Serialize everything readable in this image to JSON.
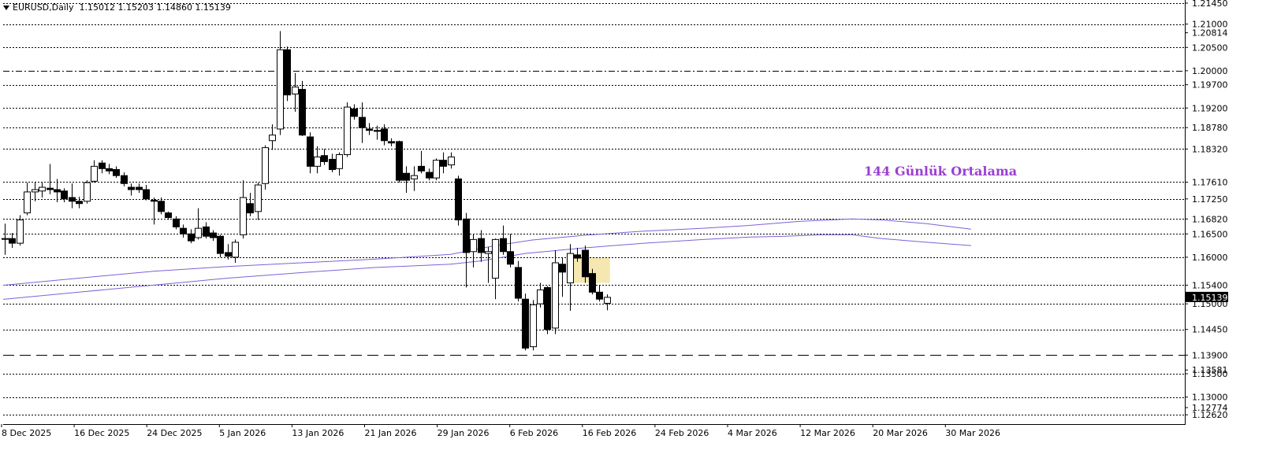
{
  "header": {
    "symbol": "EURUSD,Daily",
    "ohlc": "1.15012 1.15203 1.14860 1.15139"
  },
  "annotation": "144 Günlük Ortalama",
  "chart_data": {
    "type": "candlestick",
    "symbol": "EURUSD",
    "timeframe": "Daily",
    "ylim": [
      1.1242,
      1.215
    ],
    "price_axis_labels": [
      {
        "value": 1.2145,
        "label": "1.21450"
      },
      {
        "value": 1.21,
        "label": "1.21000"
      },
      {
        "value": 1.20814,
        "label": "1.20814"
      },
      {
        "value": 1.205,
        "label": "1.20500"
      },
      {
        "value": 1.2,
        "label": "1.20000"
      },
      {
        "value": 1.197,
        "label": "1.19700"
      },
      {
        "value": 1.192,
        "label": "1.19200"
      },
      {
        "value": 1.1878,
        "label": "1.18780"
      },
      {
        "value": 1.1832,
        "label": "1.18320"
      },
      {
        "value": 1.1761,
        "label": "1.17610"
      },
      {
        "value": 1.1725,
        "label": "1.17250"
      },
      {
        "value": 1.1682,
        "label": "1.16820"
      },
      {
        "value": 1.165,
        "label": "1.16500"
      },
      {
        "value": 1.16,
        "label": "1.16000"
      },
      {
        "value": 1.154,
        "label": "1.15400"
      },
      {
        "value": 1.15139,
        "label": "1.15139",
        "current": true
      },
      {
        "value": 1.15,
        "label": "1.15000"
      },
      {
        "value": 1.1445,
        "label": "1.14450"
      },
      {
        "value": 1.139,
        "label": "1.13900"
      },
      {
        "value": 1.13581,
        "label": "1.13581"
      },
      {
        "value": 1.135,
        "label": "1.13500"
      },
      {
        "value": 1.13,
        "label": "1.13000"
      },
      {
        "value": 1.12774,
        "label": "1.12774"
      },
      {
        "value": 1.1262,
        "label": "1.12620"
      }
    ],
    "horizontal_levels": [
      {
        "value": 1.2145,
        "style": "dotted"
      },
      {
        "value": 1.21,
        "style": "dotted"
      },
      {
        "value": 1.205,
        "style": "dotted"
      },
      {
        "value": 1.2,
        "style": "dashdot"
      },
      {
        "value": 1.197,
        "style": "dotted"
      },
      {
        "value": 1.192,
        "style": "dotted"
      },
      {
        "value": 1.1878,
        "style": "dotted"
      },
      {
        "value": 1.1832,
        "style": "dotted"
      },
      {
        "value": 1.1761,
        "style": "dotted"
      },
      {
        "value": 1.1725,
        "style": "dotted"
      },
      {
        "value": 1.1682,
        "style": "dotted"
      },
      {
        "value": 1.165,
        "style": "dotted"
      },
      {
        "value": 1.16,
        "style": "dotted"
      },
      {
        "value": 1.154,
        "style": "dotted"
      },
      {
        "value": 1.15,
        "style": "dotted"
      },
      {
        "value": 1.1445,
        "style": "dotted"
      },
      {
        "value": 1.139,
        "style": "dashed"
      },
      {
        "value": 1.135,
        "style": "dotted"
      },
      {
        "value": 1.13,
        "style": "dotted"
      },
      {
        "value": 1.1262,
        "style": "dotted"
      }
    ],
    "time_labels": [
      "8 Dec 2025",
      "16 Dec 2025",
      "24 Dec 2025",
      "5 Jan 2026",
      "13 Jan 2026",
      "21 Jan 2026",
      "29 Jan 2026",
      "6 Feb 2026",
      "16 Feb 2026",
      "24 Feb 2026",
      "4 Mar 2026",
      "12 Mar 2026",
      "20 Mar 2026",
      "30 Mar 2026"
    ],
    "candles": [
      {
        "date": "2025-12-05",
        "o": 1.164,
        "h": 1.1672,
        "l": 1.1605,
        "c": 1.164
      },
      {
        "date": "2025-12-08",
        "o": 1.164,
        "h": 1.1652,
        "l": 1.162,
        "c": 1.163
      },
      {
        "date": "2025-12-09",
        "o": 1.163,
        "h": 1.169,
        "l": 1.1625,
        "c": 1.168
      },
      {
        "date": "2025-12-10",
        "o": 1.1695,
        "h": 1.176,
        "l": 1.169,
        "c": 1.174
      },
      {
        "date": "2025-12-11",
        "o": 1.174,
        "h": 1.1762,
        "l": 1.172,
        "c": 1.1745
      },
      {
        "date": "2025-12-12",
        "o": 1.1742,
        "h": 1.176,
        "l": 1.1728,
        "c": 1.175
      },
      {
        "date": "2025-12-15",
        "o": 1.1748,
        "h": 1.18,
        "l": 1.1735,
        "c": 1.1745
      },
      {
        "date": "2025-12-16",
        "o": 1.1745,
        "h": 1.1768,
        "l": 1.1718,
        "c": 1.174
      },
      {
        "date": "2025-12-17",
        "o": 1.1742,
        "h": 1.1748,
        "l": 1.1718,
        "c": 1.1725
      },
      {
        "date": "2025-12-18",
        "o": 1.1728,
        "h": 1.1758,
        "l": 1.1705,
        "c": 1.172
      },
      {
        "date": "2025-12-19",
        "o": 1.172,
        "h": 1.173,
        "l": 1.1705,
        "c": 1.1715
      },
      {
        "date": "2025-12-22",
        "o": 1.172,
        "h": 1.1765,
        "l": 1.1715,
        "c": 1.176
      },
      {
        "date": "2025-12-23",
        "o": 1.1763,
        "h": 1.1808,
        "l": 1.176,
        "c": 1.1795
      },
      {
        "date": "2025-12-24",
        "o": 1.1802,
        "h": 1.1808,
        "l": 1.178,
        "c": 1.179
      },
      {
        "date": "2025-12-25",
        "o": 1.179,
        "h": 1.18,
        "l": 1.1778,
        "c": 1.1785
      },
      {
        "date": "2025-12-26",
        "o": 1.1788,
        "h": 1.1795,
        "l": 1.177,
        "c": 1.1775
      },
      {
        "date": "2025-12-29",
        "o": 1.1775,
        "h": 1.1782,
        "l": 1.1752,
        "c": 1.1758
      },
      {
        "date": "2025-12-30",
        "o": 1.175,
        "h": 1.1758,
        "l": 1.1732,
        "c": 1.1745
      },
      {
        "date": "2025-12-31",
        "o": 1.175,
        "h": 1.1758,
        "l": 1.1738,
        "c": 1.1745
      },
      {
        "date": "2026-01-01",
        "o": 1.1745,
        "h": 1.1755,
        "l": 1.1722,
        "c": 1.1725
      },
      {
        "date": "2026-01-02",
        "o": 1.1722,
        "h": 1.1728,
        "l": 1.167,
        "c": 1.172
      },
      {
        "date": "2026-01-05",
        "o": 1.172,
        "h": 1.1728,
        "l": 1.1692,
        "c": 1.1698
      },
      {
        "date": "2026-01-06",
        "o": 1.1695,
        "h": 1.1698,
        "l": 1.168,
        "c": 1.1685
      },
      {
        "date": "2026-01-07",
        "o": 1.1682,
        "h": 1.1688,
        "l": 1.166,
        "c": 1.1665
      },
      {
        "date": "2026-01-08",
        "o": 1.1662,
        "h": 1.167,
        "l": 1.1642,
        "c": 1.165
      },
      {
        "date": "2026-01-09",
        "o": 1.165,
        "h": 1.166,
        "l": 1.163,
        "c": 1.1635
      },
      {
        "date": "2026-01-12",
        "o": 1.1642,
        "h": 1.1705,
        "l": 1.1638,
        "c": 1.1662
      },
      {
        "date": "2026-01-13",
        "o": 1.1665,
        "h": 1.1675,
        "l": 1.164,
        "c": 1.1645
      },
      {
        "date": "2026-01-14",
        "o": 1.1652,
        "h": 1.1658,
        "l": 1.1635,
        "c": 1.1642
      },
      {
        "date": "2026-01-15",
        "o": 1.1645,
        "h": 1.1648,
        "l": 1.16,
        "c": 1.1608
      },
      {
        "date": "2026-01-16",
        "o": 1.161,
        "h": 1.1628,
        "l": 1.1595,
        "c": 1.1602
      },
      {
        "date": "2026-01-19",
        "o": 1.16,
        "h": 1.1638,
        "l": 1.1588,
        "c": 1.1632
      },
      {
        "date": "2026-01-20",
        "o": 1.1648,
        "h": 1.1765,
        "l": 1.164,
        "c": 1.1728
      },
      {
        "date": "2026-01-21",
        "o": 1.1715,
        "h": 1.1738,
        "l": 1.1688,
        "c": 1.1695
      },
      {
        "date": "2026-01-22",
        "o": 1.1698,
        "h": 1.176,
        "l": 1.168,
        "c": 1.1755
      },
      {
        "date": "2026-01-23",
        "o": 1.1758,
        "h": 1.184,
        "l": 1.1745,
        "c": 1.1835
      },
      {
        "date": "2026-01-26",
        "o": 1.185,
        "h": 1.1885,
        "l": 1.183,
        "c": 1.1862
      },
      {
        "date": "2026-01-27",
        "o": 1.1875,
        "h": 1.2085,
        "l": 1.1862,
        "c": 1.2045
      },
      {
        "date": "2026-01-28",
        "o": 1.2045,
        "h": 1.2052,
        "l": 1.1935,
        "c": 1.1948
      },
      {
        "date": "2026-01-29",
        "o": 1.195,
        "h": 1.1995,
        "l": 1.1912,
        "c": 1.1965
      },
      {
        "date": "2026-01-30",
        "o": 1.196,
        "h": 1.1978,
        "l": 1.186,
        "c": 1.1862
      },
      {
        "date": "2026-02-02",
        "o": 1.1858,
        "h": 1.1868,
        "l": 1.178,
        "c": 1.1795
      },
      {
        "date": "2026-02-03",
        "o": 1.1795,
        "h": 1.1838,
        "l": 1.178,
        "c": 1.1815
      },
      {
        "date": "2026-02-04",
        "o": 1.1818,
        "h": 1.1832,
        "l": 1.1798,
        "c": 1.1805
      },
      {
        "date": "2026-02-05",
        "o": 1.181,
        "h": 1.1822,
        "l": 1.1782,
        "c": 1.1788
      },
      {
        "date": "2026-02-06",
        "o": 1.179,
        "h": 1.1825,
        "l": 1.1775,
        "c": 1.182
      },
      {
        "date": "2026-02-09",
        "o": 1.182,
        "h": 1.1932,
        "l": 1.1815,
        "c": 1.1922
      },
      {
        "date": "2026-02-10",
        "o": 1.1918,
        "h": 1.1928,
        "l": 1.1895,
        "c": 1.1902
      },
      {
        "date": "2026-02-11",
        "o": 1.19,
        "h": 1.1932,
        "l": 1.1845,
        "c": 1.1878
      },
      {
        "date": "2026-02-12",
        "o": 1.1875,
        "h": 1.1888,
        "l": 1.1862,
        "c": 1.1872
      },
      {
        "date": "2026-02-13",
        "o": 1.1872,
        "h": 1.1882,
        "l": 1.1852,
        "c": 1.187
      },
      {
        "date": "2026-02-16",
        "o": 1.1875,
        "h": 1.1885,
        "l": 1.184,
        "c": 1.185
      },
      {
        "date": "2026-02-17",
        "o": 1.1848,
        "h": 1.1855,
        "l": 1.1838,
        "c": 1.1845
      },
      {
        "date": "2026-02-18",
        "o": 1.1848,
        "h": 1.185,
        "l": 1.176,
        "c": 1.1765
      },
      {
        "date": "2026-02-19",
        "o": 1.178,
        "h": 1.1795,
        "l": 1.1738,
        "c": 1.1765
      },
      {
        "date": "2026-02-20",
        "o": 1.1768,
        "h": 1.1795,
        "l": 1.1742,
        "c": 1.1775
      },
      {
        "date": "2026-02-23",
        "o": 1.1795,
        "h": 1.1828,
        "l": 1.178,
        "c": 1.1785
      },
      {
        "date": "2026-02-24",
        "o": 1.1782,
        "h": 1.179,
        "l": 1.1765,
        "c": 1.177
      },
      {
        "date": "2026-02-25",
        "o": 1.177,
        "h": 1.1812,
        "l": 1.1765,
        "c": 1.1808
      },
      {
        "date": "2026-02-26",
        "o": 1.1808,
        "h": 1.1825,
        "l": 1.178,
        "c": 1.1795
      },
      {
        "date": "2026-02-27",
        "o": 1.1798,
        "h": 1.1825,
        "l": 1.179,
        "c": 1.1815
      },
      {
        "date": "2026-03-02",
        "o": 1.1768,
        "h": 1.1775,
        "l": 1.1668,
        "c": 1.168
      },
      {
        "date": "2026-03-03",
        "o": 1.1682,
        "h": 1.1695,
        "l": 1.1535,
        "c": 1.161
      },
      {
        "date": "2026-03-04",
        "o": 1.1612,
        "h": 1.165,
        "l": 1.1578,
        "c": 1.1638
      },
      {
        "date": "2026-03-05",
        "o": 1.164,
        "h": 1.1658,
        "l": 1.159,
        "c": 1.161
      },
      {
        "date": "2026-03-06",
        "o": 1.1608,
        "h": 1.1622,
        "l": 1.1545,
        "c": 1.1612
      },
      {
        "date": "2026-03-09",
        "o": 1.1555,
        "h": 1.164,
        "l": 1.151,
        "c": 1.1638
      },
      {
        "date": "2026-03-10",
        "o": 1.164,
        "h": 1.1668,
        "l": 1.1605,
        "c": 1.1612
      },
      {
        "date": "2026-03-11",
        "o": 1.1612,
        "h": 1.165,
        "l": 1.1578,
        "c": 1.1585
      },
      {
        "date": "2026-03-12",
        "o": 1.1578,
        "h": 1.1592,
        "l": 1.1505,
        "c": 1.1512
      },
      {
        "date": "2026-03-13",
        "o": 1.151,
        "h": 1.1522,
        "l": 1.14,
        "c": 1.1405
      },
      {
        "date": "2026-03-16",
        "o": 1.1408,
        "h": 1.1508,
        "l": 1.14,
        "c": 1.1498
      },
      {
        "date": "2026-03-17",
        "o": 1.15,
        "h": 1.1545,
        "l": 1.1492,
        "c": 1.153
      },
      {
        "date": "2026-03-18",
        "o": 1.1535,
        "h": 1.1538,
        "l": 1.1435,
        "c": 1.1445
      },
      {
        "date": "2026-03-19",
        "o": 1.1448,
        "h": 1.1615,
        "l": 1.1435,
        "c": 1.1588
      },
      {
        "date": "2026-03-20",
        "o": 1.1585,
        "h": 1.16,
        "l": 1.1515,
        "c": 1.1568
      },
      {
        "date": "2026-03-23",
        "o": 1.1545,
        "h": 1.1628,
        "l": 1.1485,
        "c": 1.1608
      },
      {
        "date": "2026-03-24",
        "o": 1.1605,
        "h": 1.162,
        "l": 1.159,
        "c": 1.1598
      },
      {
        "date": "2026-03-25",
        "o": 1.1615,
        "h": 1.1625,
        "l": 1.1545,
        "c": 1.1558
      },
      {
        "date": "2026-03-26",
        "o": 1.1565,
        "h": 1.1575,
        "l": 1.152,
        "c": 1.1525
      },
      {
        "date": "2026-03-27",
        "o": 1.1525,
        "h": 1.154,
        "l": 1.1505,
        "c": 1.151
      },
      {
        "date": "2026-03-30",
        "o": 1.15012,
        "h": 1.15203,
        "l": 1.1486,
        "c": 1.15139
      }
    ],
    "moving_averages": [
      {
        "name": "144 Günlük Ortalama",
        "color": "#8060d8",
        "values": [
          [
            0,
            1.154
          ],
          [
            10,
            1.1555
          ],
          [
            20,
            1.157
          ],
          [
            30,
            1.158
          ],
          [
            40,
            1.1588
          ],
          [
            50,
            1.1596
          ],
          [
            60,
            1.1606
          ],
          [
            66,
            1.1625
          ],
          [
            71,
            1.1637
          ],
          [
            78,
            1.1647
          ],
          [
            86,
            1.1656
          ],
          [
            94,
            1.1662
          ],
          [
            100,
            1.1668
          ],
          [
            107,
            1.1677
          ],
          [
            114,
            1.1682
          ],
          [
            118,
            1.168
          ],
          [
            124,
            1.1672
          ],
          [
            130,
            1.166
          ]
        ]
      },
      {
        "name": "",
        "color": "#8060d8",
        "values": [
          [
            0,
            1.151
          ],
          [
            10,
            1.1525
          ],
          [
            20,
            1.154
          ],
          [
            30,
            1.1555
          ],
          [
            40,
            1.1567
          ],
          [
            50,
            1.1578
          ],
          [
            60,
            1.1585
          ],
          [
            64,
            1.1592
          ],
          [
            70,
            1.1608
          ],
          [
            78,
            1.162
          ],
          [
            86,
            1.163
          ],
          [
            94,
            1.1638
          ],
          [
            100,
            1.1643
          ],
          [
            105,
            1.1645
          ],
          [
            110,
            1.1648
          ],
          [
            114,
            1.1648
          ],
          [
            118,
            1.164
          ],
          [
            124,
            1.1632
          ],
          [
            130,
            1.1625
          ]
        ]
      }
    ],
    "highlight_zone": {
      "from_date": "2026-03-24",
      "to_date": "2026-03-30",
      "y_from": 1.1545,
      "y_to": 1.16,
      "color": "#f4e7b0"
    },
    "colors": {
      "bull_body": "#ffffff",
      "bear_body": "#000000",
      "wick": "#000000",
      "current_price_box": "#000000"
    }
  }
}
